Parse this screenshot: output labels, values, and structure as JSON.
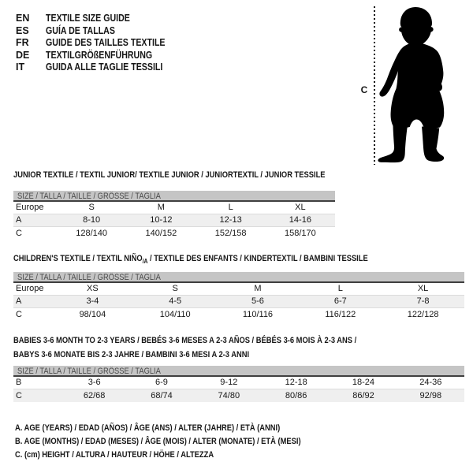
{
  "colors": {
    "page_bg": "#ffffff",
    "ink": "#161616",
    "header_bar_bg": "#c5c5c5",
    "header_bar_text": "#4a4a4a",
    "header_bar_border": "#3f3f3f",
    "alt_row_bg": "#efefef",
    "row_divider": "#dcdcdc",
    "silhouette": "#000000"
  },
  "languages": [
    {
      "code": "EN",
      "label": "TEXTILE SIZE GUIDE"
    },
    {
      "code": "ES",
      "label": "GUÍA DE TALLAS"
    },
    {
      "code": "FR",
      "label": "GUIDE DES TAILLES TEXTILE"
    },
    {
      "code": "DE",
      "label": "TEXTILGRÖßENFÜHRUNG"
    },
    {
      "code": "IT",
      "label": "GUIDA ALLE TAGLIE TESSILI"
    }
  ],
  "figure": {
    "height_label": "C"
  },
  "tables": [
    {
      "title": "JUNIOR TEXTILE / TEXTIL JUNIOR/ TEXTILE JUNIOR / JUNIORTEXTIL / JUNIOR TESSILE",
      "header": "SIZE / TALLA / TAILLE / GRÖSSE / TAGLIA",
      "rows": [
        {
          "label": "Europe",
          "values": [
            "S",
            "M",
            "L",
            "XL"
          ]
        },
        {
          "label": "A",
          "values": [
            "8-10",
            "10-12",
            "12-13",
            "14-16"
          ]
        },
        {
          "label": "C",
          "values": [
            "128/140",
            "140/152",
            "152/158",
            "158/170"
          ]
        }
      ]
    },
    {
      "title_pre": "CHILDREN'S TEXTILE / TEXTIL NIÑO",
      "title_sub": "/A",
      "title_post": " / TEXTILE DES ENFANTS / KINDERTEXTIL / BAMBINI TESSILE",
      "header": "SIZE / TALLA / TAILLE / GRÖSSE / TAGLIA",
      "rows": [
        {
          "label": "Europe",
          "values": [
            "XS",
            "S",
            "M",
            "L",
            "XL"
          ]
        },
        {
          "label": "A",
          "values": [
            "3-4",
            "4-5",
            "5-6",
            "6-7",
            "7-8"
          ]
        },
        {
          "label": "C",
          "values": [
            "98/104",
            "104/110",
            "110/116",
            "116/122",
            "122/128"
          ]
        }
      ]
    },
    {
      "title_line1": "BABIES 3-6 MONTH TO 2-3 YEARS / BEBÉS 3-6 MESES A 2-3 AÑOS / BÉBÉS 3-6 MOIS À 2-3 ANS /",
      "title_line2": "BABYS 3-6 MONATE BIS 2-3 JAHRE / BAMBINI 3-6 MESI A 2-3 ANNI",
      "header": "SIZE / TALLA / TAILLE / GRÖSSE / TAGLIA",
      "rows": [
        {
          "label": "B",
          "values": [
            "3-6",
            "6-9",
            "9-12",
            "12-18",
            "18-24",
            "24-36"
          ]
        },
        {
          "label": "C",
          "values": [
            "62/68",
            "68/74",
            "74/80",
            "80/86",
            "86/92",
            "92/98"
          ]
        }
      ]
    }
  ],
  "footnotes": [
    "A. AGE (YEARS) / EDAD (AÑOS) / ÂGE (ANS) / ALTER (JAHRE) / ETÀ (ANNI)",
    "B. AGE (MONTHS) / EDAD (MESES) / ÂGE (MOIS) / ALTER (MONATE) / ETÀ (MESI)",
    "C. (cm) HEIGHT / ALTURA / HAUTEUR / HÖHE / ALTEZZA"
  ]
}
